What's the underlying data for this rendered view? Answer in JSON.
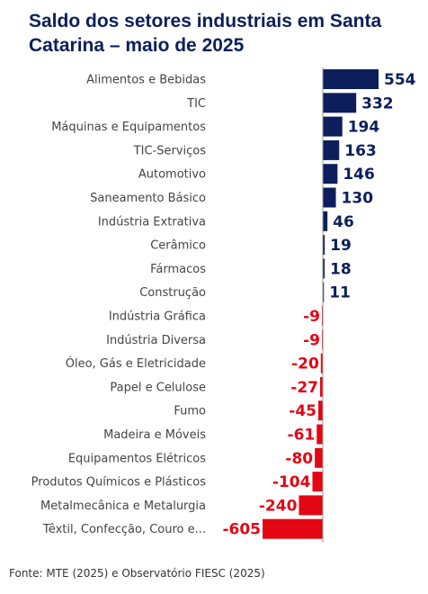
{
  "title": "Saldo dos setores industriais em Santa Catarina – maio de 2025",
  "source": "Fonte: MTE (2025) e Observatório FIESC (2025)",
  "colors": {
    "positive": "#0c1f5c",
    "negative": "#e30613",
    "title": "#0c1f5c"
  },
  "chart_data": {
    "type": "bar",
    "orientation": "horizontal",
    "title": "Saldo dos setores industriais em Santa Catarina – maio de 2025",
    "categories": [
      "Alimentos e Bebidas",
      "TIC",
      "Máquinas e Equipamentos",
      "TIC-Serviços",
      "Automotivo",
      "Saneamento Básico",
      "Indústria Extrativa",
      "Cerâmico",
      "Fármacos",
      "Construção",
      "Indústria Gráfica",
      "Indústria Diversa",
      "Óleo, Gás e Eletricidade",
      "Papel e Celulose",
      "Fumo",
      "Madeira e Móveis",
      "Equipamentos Elétricos",
      "Produtos Químicos e Plásticos",
      "Metalmecânica e Metalurgia",
      "Têxtil, Confecção, Couro e..."
    ],
    "values": [
      554,
      332,
      194,
      163,
      146,
      130,
      46,
      19,
      18,
      11,
      -9,
      -9,
      -20,
      -27,
      -45,
      -61,
      -80,
      -104,
      -240,
      -605
    ],
    "xlim": [
      -605,
      554
    ],
    "grid": false,
    "legend": "none"
  }
}
